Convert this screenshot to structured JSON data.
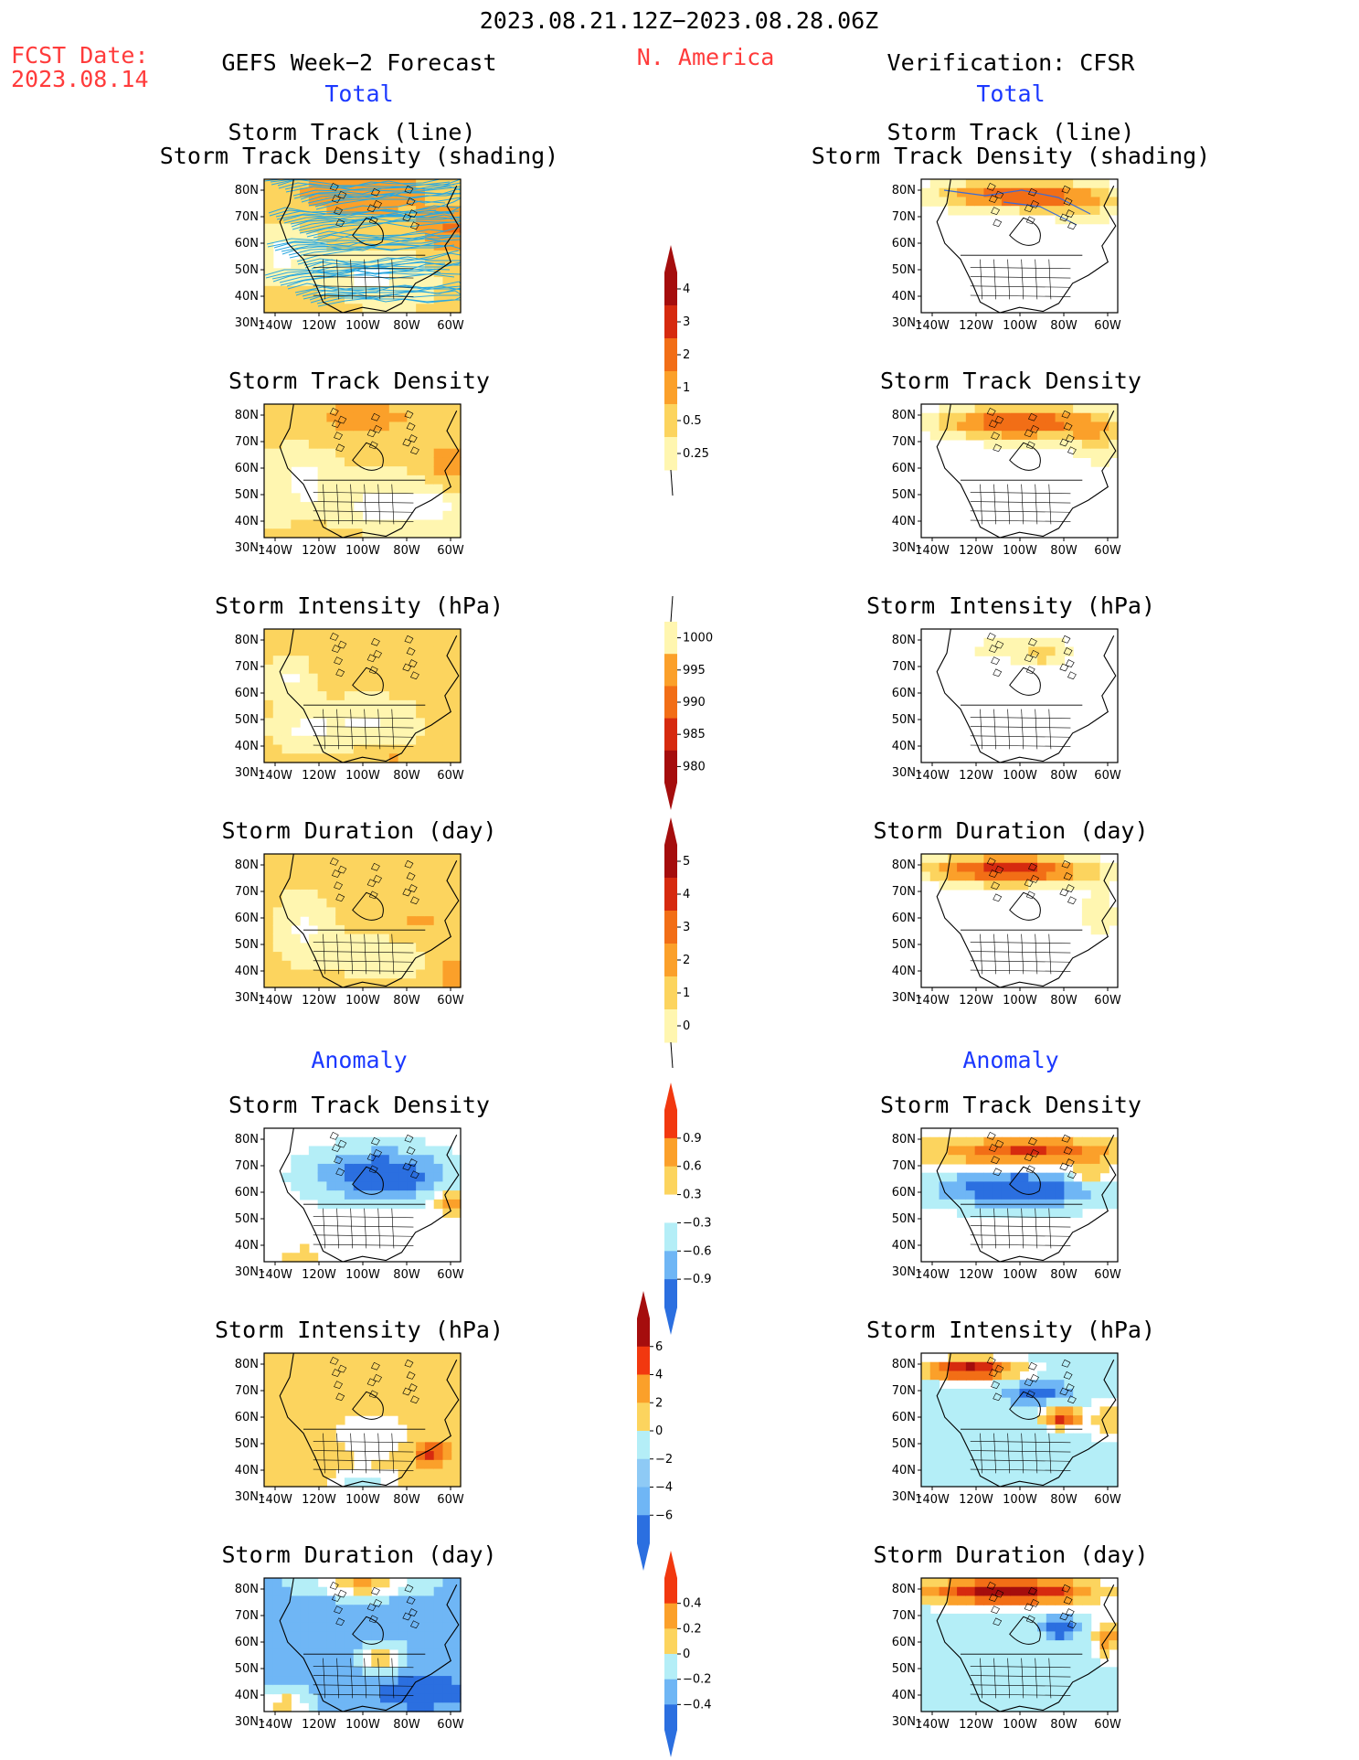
{
  "header": {
    "period": "2023.08.21.12Z−2023.08.28.06Z",
    "fcst_label": "FCST Date:",
    "fcst_date": "2023.08.14",
    "region": "N. America",
    "left_title": "GEFS Week−2 Forecast",
    "right_title": "Verification: CFSR"
  },
  "sections": {
    "total": "Total",
    "anomaly": "Anomaly"
  },
  "panel_titles": {
    "track_line": "Storm Track (line)",
    "track_shading": "Storm Track Density (shading)",
    "track_density": "Storm Track Density",
    "intensity": "Storm Intensity (hPa)",
    "duration": "Storm Duration (day)"
  },
  "axes": {
    "lon_labels": [
      "140W",
      "120W",
      "100W",
      "80W",
      "60W"
    ],
    "lat_labels": [
      "80N",
      "70N",
      "60N",
      "50N",
      "40N",
      "30N"
    ]
  },
  "colorbars": [
    {
      "id": "total-density",
      "labels": [
        "4",
        "3",
        "2",
        "1",
        "0.5",
        "0.25"
      ],
      "colors": [
        "#a50d0d",
        "#d62a0f",
        "#f26e16",
        "#fba02a",
        "#fcd45e",
        "#fff6b0"
      ]
    },
    {
      "id": "total-intensity",
      "labels": [
        "1000",
        "995",
        "990",
        "985",
        "980"
      ],
      "colors": [
        "#fff6b0",
        "#fba02a",
        "#f26e16",
        "#d62a0f",
        "#a50d0d"
      ]
    },
    {
      "id": "total-duration",
      "labels": [
        "5",
        "4",
        "3",
        "2",
        "1",
        "0"
      ],
      "colors": [
        "#a50d0d",
        "#d62a0f",
        "#f26e16",
        "#fba02a",
        "#fcd45e",
        "#fff6b0"
      ]
    },
    {
      "id": "anom-density",
      "labels": [
        "0.9",
        "0.6",
        "0.3",
        "−0.3",
        "−0.6",
        "−0.9"
      ],
      "colors": [
        "#f2380f",
        "#fba02a",
        "#fcd45e",
        "#ffffff",
        "#b4eef7",
        "#6fb6f5",
        "#2b6fe0"
      ]
    },
    {
      "id": "anom-intensity",
      "labels": [
        "6",
        "4",
        "2",
        "0",
        "−2",
        "−4",
        "−6"
      ],
      "colors": [
        "#a50d0d",
        "#f2380f",
        "#fba02a",
        "#fcd45e",
        "#b4eef7",
        "#8ecaf5",
        "#6fb6f5",
        "#2b6fe0"
      ]
    },
    {
      "id": "anom-duration",
      "labels": [
        "0.4",
        "0.2",
        "0",
        "−0.2",
        "−0.4"
      ],
      "colors": [
        "#f2380f",
        "#fba02a",
        "#fcd45e",
        "#b4eef7",
        "#6fb6f5",
        "#2b6fe0"
      ]
    }
  ],
  "colors": {
    "dark_red": "#a50d0d",
    "red": "#d62a0f",
    "orange_red": "#f26e16",
    "orange": "#fba02a",
    "light_orange": "#fcd45e",
    "pale_yellow": "#fff6b0",
    "dark_blue": "#2b6fe0",
    "mid_blue": "#6fb6f5",
    "light_blue": "#b4eef7",
    "track_line": "#2aa8e0"
  }
}
